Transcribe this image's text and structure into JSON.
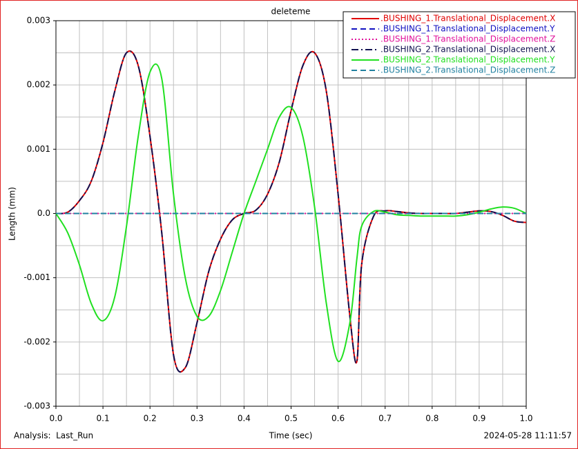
{
  "chart_data": {
    "type": "line",
    "title": "deleteme",
    "x_label": "Time (sec)",
    "y_label": "Length (mm)",
    "footer_left": "Analysis:  Last_Run",
    "footer_right": "2024-05-28 11:11:57",
    "xlim": [
      0,
      1
    ],
    "ylim": [
      -0.003,
      0.003
    ],
    "grid": true,
    "xticks": [
      {
        "value": 0,
        "label": "0.0"
      },
      0.1,
      0.2,
      0.3,
      0.4,
      0.5,
      0.6,
      0.7,
      0.8,
      0.9,
      {
        "value": 1,
        "label": "1.0"
      }
    ],
    "yticks": [
      -0.003,
      -0.002,
      -0.001,
      {
        "value": 0,
        "label": "0.0"
      },
      0.001,
      0.002,
      0.003
    ],
    "x": [
      0,
      0.025,
      0.05,
      0.075,
      0.1,
      0.125,
      0.15,
      0.175,
      0.2,
      0.225,
      0.25,
      0.275,
      0.3,
      0.325,
      0.35,
      0.375,
      0.4,
      0.425,
      0.45,
      0.475,
      0.5,
      0.525,
      0.55,
      0.575,
      0.6,
      0.625,
      0.64,
      0.65,
      0.675,
      0.7,
      0.725,
      0.75,
      0.775,
      0.8,
      0.825,
      0.85,
      0.875,
      0.9,
      0.925,
      0.95,
      0.975,
      1.0
    ],
    "series": [
      {
        "name": ".BUSHING_1.Translational_Displacement.X",
        "color": "#e00000",
        "dash": "solid",
        "values": [
          0,
          2e-05,
          0.0002,
          0.0005,
          0.0011,
          0.0019,
          0.0025,
          0.0023,
          0.0012,
          -0.0003,
          -0.0022,
          -0.0024,
          -0.0017,
          -0.0009,
          -0.0004,
          -0.0001,
          0,
          5e-05,
          0.0003,
          0.0008,
          0.0016,
          0.0023,
          0.0025,
          0.0019,
          0.0003,
          -0.0016,
          -0.0023,
          -0.0008,
          -5e-05,
          4e-05,
          3e-05,
          1e-05,
          0,
          0,
          0,
          0,
          2e-05,
          4e-05,
          3e-05,
          -3e-05,
          -0.00012,
          -0.00014
        ]
      },
      {
        "name": ".BUSHING_1.Translational_Displacement.Y",
        "color": "#1010c0",
        "dash": "dashed",
        "values": [
          0,
          0,
          0,
          0,
          0,
          0,
          0,
          0,
          0,
          0,
          0,
          0,
          0,
          0,
          0,
          0,
          0,
          0,
          0,
          0,
          0,
          0,
          0,
          0,
          0,
          0,
          0,
          0,
          0,
          0,
          0,
          0,
          0,
          0,
          0,
          0,
          0,
          0,
          0,
          0,
          0,
          0
        ]
      },
      {
        "name": ".BUSHING_1.Translational_Displacement.Z",
        "color": "#e0109a",
        "dash": "dotted",
        "values": [
          0,
          0,
          0,
          0,
          0,
          0,
          0,
          0,
          0,
          0,
          0,
          0,
          0,
          0,
          0,
          0,
          0,
          0,
          0,
          0,
          0,
          0,
          0,
          0,
          0,
          0,
          0,
          0,
          0,
          0,
          0,
          0,
          0,
          0,
          0,
          0,
          0,
          0,
          0,
          0,
          0,
          0
        ]
      },
      {
        "name": ".BUSHING_2.Translational_Displacement.X",
        "color": "#101050",
        "dash": "dashdot",
        "values": [
          0,
          2e-05,
          0.0002,
          0.0005,
          0.0011,
          0.0019,
          0.0025,
          0.0023,
          0.0012,
          -0.0003,
          -0.0022,
          -0.0024,
          -0.0017,
          -0.0009,
          -0.0004,
          -0.0001,
          0,
          5e-05,
          0.0003,
          0.0008,
          0.0016,
          0.0023,
          0.0025,
          0.0019,
          0.0003,
          -0.0016,
          -0.0023,
          -0.0008,
          -5e-05,
          4e-05,
          3e-05,
          1e-05,
          0,
          0,
          0,
          0,
          2e-05,
          4e-05,
          3e-05,
          -3e-05,
          -0.00012,
          -0.00014
        ]
      },
      {
        "name": ".BUSHING_2.Translational_Displacement.Y",
        "color": "#20e020",
        "dash": "solid",
        "values": [
          0,
          -0.0003,
          -0.0008,
          -0.0014,
          -0.00167,
          -0.0013,
          -0.0002,
          0.0012,
          0.0022,
          0.0021,
          0.0003,
          -0.001,
          -0.0016,
          -0.0016,
          -0.0012,
          -0.0006,
          0,
          0.0005,
          0.001,
          0.0015,
          0.00165,
          0.0012,
          0.0001,
          -0.0014,
          -0.0023,
          -0.0017,
          -0.0007,
          -0.0002,
          3e-05,
          2e-05,
          -2e-05,
          -3e-05,
          -4e-05,
          -4e-05,
          -4e-05,
          -4e-05,
          -2e-05,
          2e-05,
          7e-05,
          0.0001,
          8e-05,
          0
        ]
      },
      {
        "name": ".BUSHING_2.Translational_Displacement.Z",
        "color": "#2080a0",
        "dash": "dashed",
        "values": [
          0,
          0,
          0,
          0,
          0,
          0,
          0,
          0,
          0,
          0,
          0,
          0,
          0,
          0,
          0,
          0,
          0,
          0,
          0,
          0,
          0,
          0,
          0,
          0,
          0,
          0,
          0,
          0,
          0,
          0,
          0,
          0,
          0,
          0,
          0,
          0,
          0,
          0,
          0,
          0,
          0,
          0
        ]
      }
    ]
  }
}
